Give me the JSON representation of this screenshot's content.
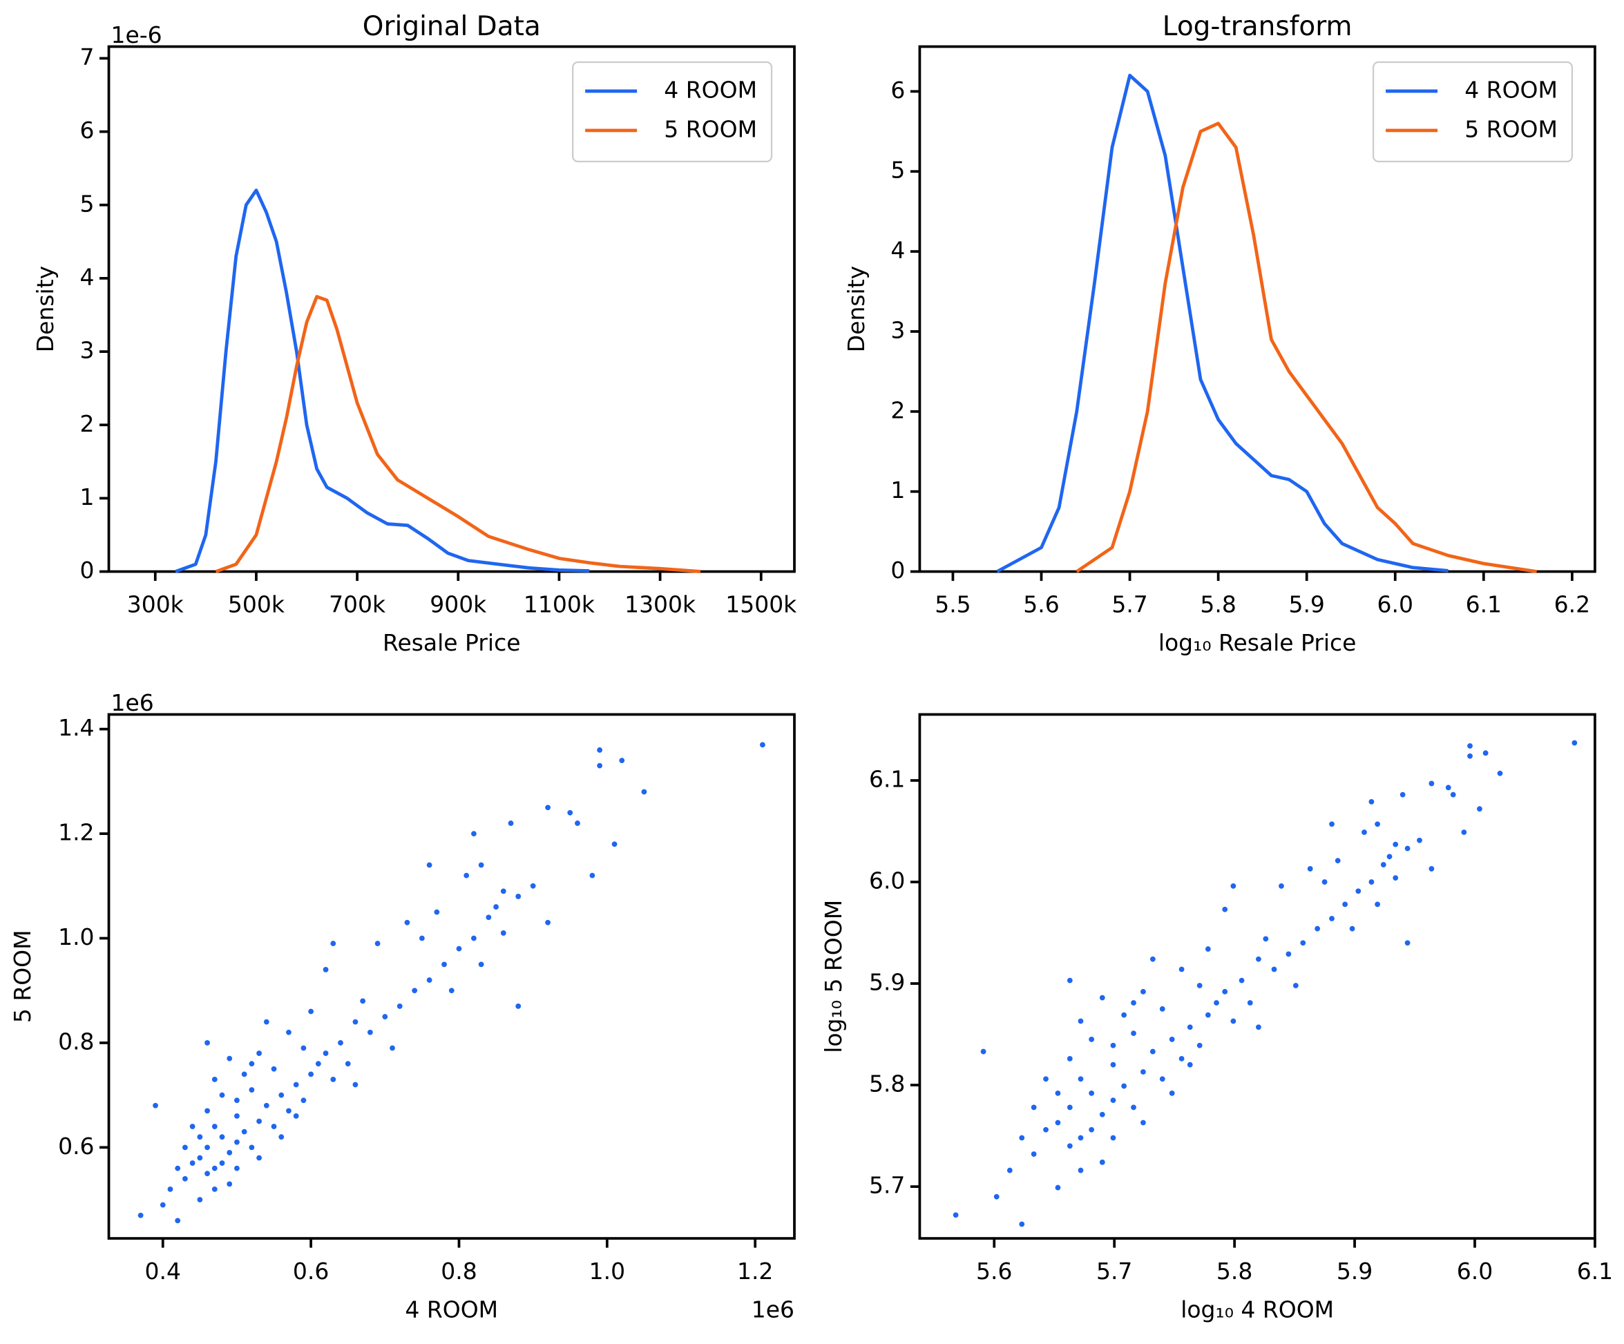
{
  "chart_data": [
    {
      "type": "line",
      "title": "Original Data",
      "x_label": "Resale Price",
      "y_label": "Density",
      "y_offset_label": "1e-6",
      "legend": "upper right",
      "xlim": [
        208000,
        1566000
      ],
      "ylim": [
        0,
        7.16
      ],
      "xticks": [
        {
          "value": 300000,
          "label": "300k"
        },
        {
          "value": 500000,
          "label": "500k"
        },
        {
          "value": 700000,
          "label": "700k"
        },
        {
          "value": 900000,
          "label": "900k"
        },
        {
          "value": 1100000,
          "label": "1100k"
        },
        {
          "value": 1300000,
          "label": "1300k"
        },
        {
          "value": 1500000,
          "label": "1500k"
        }
      ],
      "yticks": [
        0,
        1,
        2,
        3,
        4,
        5,
        6,
        7
      ],
      "series": [
        {
          "name": "4 ROOM",
          "color": "#1f66f0",
          "x": [
            340000,
            380000,
            400000,
            420000,
            440000,
            460000,
            480000,
            500000,
            520000,
            540000,
            560000,
            580000,
            600000,
            620000,
            640000,
            680000,
            720000,
            760000,
            800000,
            840000,
            880000,
            920000,
            980000,
            1040000,
            1100000,
            1160000
          ],
          "values": [
            0,
            0.1,
            0.5,
            1.5,
            3,
            4.3,
            5.0,
            5.2,
            4.9,
            4.5,
            3.8,
            3.0,
            2.0,
            1.4,
            1.15,
            1.0,
            0.8,
            0.65,
            0.63,
            0.45,
            0.25,
            0.15,
            0.1,
            0.05,
            0.02,
            0.01
          ]
        },
        {
          "name": "5 ROOM",
          "color": "#f26418",
          "x": [
            420000,
            460000,
            500000,
            540000,
            560000,
            580000,
            600000,
            620000,
            640000,
            660000,
            680000,
            700000,
            740000,
            780000,
            840000,
            900000,
            960000,
            1040000,
            1100000,
            1160000,
            1220000,
            1300000,
            1380000
          ],
          "values": [
            0,
            0.1,
            0.5,
            1.5,
            2.1,
            2.8,
            3.4,
            3.75,
            3.7,
            3.3,
            2.8,
            2.3,
            1.6,
            1.25,
            1.0,
            0.75,
            0.48,
            0.3,
            0.18,
            0.12,
            0.07,
            0.04,
            0
          ]
        }
      ]
    },
    {
      "type": "line",
      "title": "Log-transform",
      "x_label": "log₁₀ Resale Price",
      "y_label": "Density",
      "legend": "upper right",
      "xlim": [
        5.4625,
        6.2258
      ],
      "ylim": [
        0,
        6.56
      ],
      "xticks": [
        5.5,
        5.6,
        5.7,
        5.8,
        5.9,
        {
          "value": 6,
          "label": "6.0"
        },
        6.1,
        6.2
      ],
      "yticks": [
        0,
        1,
        2,
        3,
        4,
        5,
        6
      ],
      "series": [
        {
          "name": "4 ROOM",
          "color": "#1f66f0",
          "x": [
            5.55,
            5.6,
            5.62,
            5.64,
            5.66,
            5.68,
            5.7,
            5.72,
            5.74,
            5.76,
            5.78,
            5.8,
            5.82,
            5.84,
            5.86,
            5.88,
            5.9,
            5.92,
            5.94,
            5.98,
            6.02,
            6.06
          ],
          "values": [
            0,
            0.3,
            0.8,
            2.0,
            3.6,
            5.3,
            6.2,
            6.0,
            5.2,
            3.8,
            2.4,
            1.9,
            1.6,
            1.4,
            1.2,
            1.15,
            1.0,
            0.6,
            0.35,
            0.15,
            0.05,
            0.01
          ]
        },
        {
          "name": "5 ROOM",
          "color": "#f26418",
          "x": [
            5.64,
            5.68,
            5.7,
            5.72,
            5.74,
            5.76,
            5.78,
            5.8,
            5.82,
            5.84,
            5.86,
            5.88,
            5.9,
            5.92,
            5.94,
            5.96,
            5.98,
            6.0,
            6.02,
            6.06,
            6.1,
            6.16
          ],
          "values": [
            0,
            0.3,
            1.0,
            2.0,
            3.6,
            4.8,
            5.5,
            5.6,
            5.3,
            4.2,
            2.9,
            2.5,
            2.2,
            1.9,
            1.6,
            1.2,
            0.8,
            0.6,
            0.35,
            0.2,
            0.1,
            0
          ]
        }
      ]
    },
    {
      "type": "scatter",
      "x_label": "4 ROOM",
      "y_label": "5 ROOM",
      "x_offset_label": "1e6",
      "y_offset_label": "1e6",
      "xlim": [
        0.327,
        1.253
      ],
      "ylim": [
        0.426,
        1.428
      ],
      "xticks": [
        0.4,
        0.6,
        0.8,
        {
          "value": 1,
          "label": "1.0"
        },
        1.2
      ],
      "yticks": [
        0.6,
        0.8,
        {
          "value": 1,
          "label": "1.0"
        },
        1.2,
        1.4
      ],
      "series": [
        {
          "color": "#1f66f0",
          "x": [
            0.45,
            0.46,
            0.47,
            0.48,
            0.49,
            0.5,
            0.47,
            0.46,
            0.48,
            0.51,
            0.52,
            0.5,
            0.53,
            0.49,
            0.47,
            0.44,
            0.45,
            0.54,
            0.55,
            0.56,
            0.57,
            0.52,
            0.5,
            0.58,
            0.59,
            0.6,
            0.61,
            0.62,
            0.63,
            0.64,
            0.58,
            0.55,
            0.53,
            0.51,
            0.48,
            0.46,
            0.44,
            0.43,
            0.42,
            0.41,
            0.46,
            0.49,
            0.54,
            0.57,
            0.6,
            0.62,
            0.66,
            0.67,
            0.68,
            0.7,
            0.72,
            0.74,
            0.76,
            0.78,
            0.8,
            0.82,
            0.84,
            0.85,
            0.86,
            0.88,
            0.9,
            0.83,
            0.79,
            0.75,
            0.73,
            0.71,
            0.65,
            0.63,
            0.69,
            0.77,
            0.81,
            0.83,
            0.86,
            0.66,
            0.56,
            0.53,
            0.5,
            0.45,
            0.43,
            0.47,
            0.52,
            0.59,
            0.37,
            0.4,
            0.42,
            0.39,
            0.88,
            0.92,
            0.92,
            0.95,
            0.96,
            0.87,
            0.82,
            0.76,
            0.98,
            1.01,
            1.05,
            0.99,
            1.02,
            0.99,
            1.21
          ],
          "values": [
            0.58,
            0.6,
            0.56,
            0.62,
            0.59,
            0.61,
            0.64,
            0.55,
            0.57,
            0.63,
            0.6,
            0.66,
            0.65,
            0.53,
            0.52,
            0.57,
            0.62,
            0.68,
            0.64,
            0.7,
            0.67,
            0.71,
            0.69,
            0.72,
            0.69,
            0.74,
            0.76,
            0.78,
            0.73,
            0.8,
            0.66,
            0.75,
            0.78,
            0.74,
            0.7,
            0.67,
            0.64,
            0.54,
            0.56,
            0.52,
            0.8,
            0.77,
            0.84,
            0.82,
            0.86,
            0.94,
            0.84,
            0.88,
            0.82,
            0.85,
            0.87,
            0.9,
            0.92,
            0.95,
            0.98,
            1.0,
            1.04,
            1.06,
            1.01,
            1.08,
            1.1,
            0.95,
            0.9,
            1.0,
            1.03,
            0.79,
            0.76,
            0.99,
            0.99,
            1.05,
            1.12,
            1.14,
            1.09,
            0.72,
            0.62,
            0.58,
            0.56,
            0.5,
            0.6,
            0.73,
            0.76,
            0.79,
            0.47,
            0.49,
            0.46,
            0.68,
            0.87,
            1.03,
            1.25,
            1.24,
            1.22,
            1.22,
            1.2,
            1.14,
            1.12,
            1.18,
            1.28,
            1.33,
            1.34,
            1.36,
            1.37
          ]
        }
      ]
    },
    {
      "type": "scatter",
      "x_label": "log₁₀ 4 ROOM",
      "y_label": "log₁₀ 5 ROOM",
      "xlim": [
        5.538,
        6.1
      ],
      "ylim": [
        5.649,
        6.165
      ],
      "xticks": [
        5.6,
        5.7,
        5.8,
        5.9,
        {
          "value": 6,
          "label": "6.0"
        },
        6.1
      ],
      "yticks": [
        5.7,
        5.8,
        5.9,
        {
          "value": 6,
          "label": "6.0"
        },
        6.1
      ],
      "series": [
        {
          "color": "#1f66f0",
          "x": [
            5.653,
            5.663,
            5.672,
            5.681,
            5.69,
            5.699,
            5.672,
            5.663,
            5.681,
            5.708,
            5.716,
            5.699,
            5.724,
            5.69,
            5.672,
            5.643,
            5.653,
            5.732,
            5.74,
            5.748,
            5.756,
            5.716,
            5.699,
            5.763,
            5.771,
            5.778,
            5.785,
            5.792,
            5.799,
            5.806,
            5.763,
            5.74,
            5.724,
            5.708,
            5.681,
            5.663,
            5.643,
            5.633,
            5.623,
            5.613,
            5.663,
            5.69,
            5.732,
            5.756,
            5.778,
            5.792,
            5.82,
            5.826,
            5.833,
            5.845,
            5.857,
            5.869,
            5.881,
            5.892,
            5.903,
            5.914,
            5.924,
            5.929,
            5.934,
            5.944,
            5.954,
            5.919,
            5.898,
            5.875,
            5.863,
            5.851,
            5.813,
            5.799,
            5.839,
            5.886,
            5.908,
            5.919,
            5.934,
            5.82,
            5.748,
            5.724,
            5.699,
            5.653,
            5.633,
            5.672,
            5.716,
            5.771,
            5.568,
            5.602,
            5.623,
            5.591,
            5.944,
            5.964,
            5.964,
            5.978,
            5.982,
            5.94,
            5.914,
            5.881,
            5.991,
            6.004,
            6.021,
            5.996,
            6.009,
            5.996,
            6.083
          ],
          "values": [
            5.763,
            5.778,
            5.748,
            5.792,
            5.771,
            5.785,
            5.806,
            5.74,
            5.756,
            5.799,
            5.778,
            5.82,
            5.813,
            5.724,
            5.716,
            5.756,
            5.792,
            5.833,
            5.806,
            5.845,
            5.826,
            5.851,
            5.839,
            5.857,
            5.839,
            5.869,
            5.881,
            5.892,
            5.863,
            5.903,
            5.82,
            5.875,
            5.892,
            5.869,
            5.845,
            5.826,
            5.806,
            5.732,
            5.748,
            5.716,
            5.903,
            5.886,
            5.924,
            5.914,
            5.934,
            5.973,
            5.924,
            5.944,
            5.914,
            5.929,
            5.94,
            5.954,
            5.964,
            5.978,
            5.991,
            6.0,
            6.017,
            6.025,
            6.004,
            6.033,
            6.041,
            5.978,
            5.954,
            6.0,
            6.013,
            5.898,
            5.881,
            5.996,
            5.996,
            6.021,
            6.049,
            6.057,
            6.037,
            5.857,
            5.792,
            5.763,
            5.748,
            5.699,
            5.778,
            5.863,
            5.881,
            5.898,
            5.672,
            5.69,
            5.663,
            5.833,
            5.94,
            6.013,
            6.097,
            6.093,
            6.086,
            6.086,
            6.079,
            6.057,
            6.049,
            6.072,
            6.107,
            6.124,
            6.127,
            6.134,
            6.137
          ]
        }
      ]
    }
  ]
}
